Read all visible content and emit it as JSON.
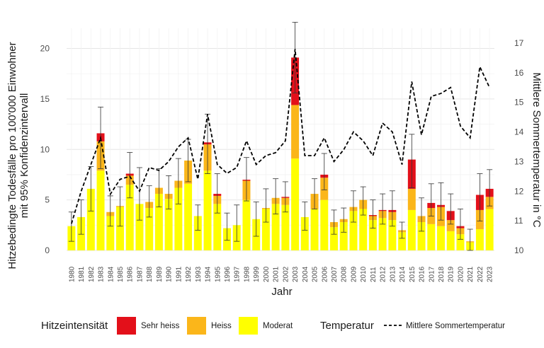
{
  "chart_data": {
    "type": "bar",
    "xlabel": "Jahr",
    "ylabel_lines": [
      "Hitzebedingte Todesfälle pro 100'000 Einwohner",
      "mit 95% Konfidenzintervall"
    ],
    "y2label": "Mittlere Sommertemperatur in °C",
    "ylim": [
      0,
      22
    ],
    "yticks": [
      0,
      5,
      10,
      15,
      20
    ],
    "y2lim": [
      10,
      17.5
    ],
    "y2ticks": [
      10,
      11,
      12,
      13,
      14,
      15,
      16,
      17
    ],
    "grid": true,
    "categories": [
      "1980",
      "1981",
      "1982",
      "1983",
      "1984",
      "1985",
      "1986",
      "1987",
      "1988",
      "1989",
      "1990",
      "1991",
      "1992",
      "1993",
      "1994",
      "1995",
      "1996",
      "1997",
      "1998",
      "1999",
      "2000",
      "2001",
      "2002",
      "2003",
      "2004",
      "2005",
      "2006",
      "2007",
      "2008",
      "2009",
      "2010",
      "2011",
      "2012",
      "2013",
      "2014",
      "2015",
      "2016",
      "2017",
      "2018",
      "2019",
      "2020",
      "2021",
      "2022",
      "2023"
    ],
    "series": [
      {
        "name": "Moderat",
        "color": "#ffff00",
        "values": [
          2.4,
          3.3,
          6.1,
          7.9,
          3.4,
          4.3,
          6.5,
          4.6,
          4.2,
          5.6,
          5.1,
          6.2,
          6.6,
          3.4,
          7.9,
          4.6,
          2.2,
          2.5,
          5.0,
          3.1,
          4.1,
          4.6,
          4.5,
          9.1,
          3.3,
          4.1,
          5.0,
          2.3,
          2.8,
          3.9,
          4.1,
          3.0,
          3.2,
          3.0,
          1.8,
          4.0,
          2.8,
          2.6,
          2.4,
          1.9,
          1.6,
          0.8,
          2.1,
          4.1
        ]
      },
      {
        "name": "Heiss",
        "color": "#fbb61a",
        "values": [
          0.0,
          0.0,
          0.0,
          2.9,
          0.4,
          0.1,
          0.9,
          0.0,
          0.6,
          0.6,
          0.5,
          0.7,
          2.3,
          0.0,
          2.6,
          0.8,
          0.0,
          0.0,
          1.9,
          0.0,
          0.1,
          0.6,
          0.7,
          5.3,
          0.0,
          1.5,
          2.2,
          0.5,
          0.3,
          0.4,
          0.9,
          0.4,
          0.7,
          0.8,
          0.2,
          2.1,
          0.6,
          1.6,
          1.9,
          1.1,
          0.6,
          0.1,
          1.9,
          1.2
        ]
      },
      {
        "name": "Sehr heiss",
        "color": "#e3101a",
        "values": [
          0.0,
          0.0,
          0.0,
          0.8,
          0.0,
          0.0,
          0.2,
          0.0,
          0.0,
          0.0,
          0.0,
          0.0,
          0.0,
          0.0,
          0.2,
          0.2,
          0.0,
          0.0,
          0.1,
          0.0,
          0.0,
          0.0,
          0.1,
          4.7,
          0.0,
          0.0,
          0.3,
          0.0,
          0.0,
          0.0,
          0.0,
          0.1,
          0.1,
          0.2,
          0.0,
          2.9,
          0.0,
          0.5,
          0.2,
          0.9,
          0.2,
          0.0,
          1.5,
          0.8
        ]
      }
    ],
    "ci_lower": [
      0.9,
      1.6,
      3.9,
      8.1,
      2.4,
      2.4,
      5.2,
      3.0,
      3.3,
      4.3,
      4.1,
      4.6,
      6.8,
      2.0,
      7.6,
      3.7,
      1.0,
      0.9,
      4.9,
      1.4,
      2.8,
      3.6,
      3.8,
      15.6,
      2.0,
      4.1,
      6.0,
      1.6,
      1.8,
      2.8,
      3.5,
      2.2,
      2.6,
      2.4,
      1.2,
      6.2,
      1.9,
      3.4,
      3.0,
      2.6,
      1.1,
      0.0,
      2.9,
      4.4
    ],
    "ci_upper": [
      3.8,
      5.0,
      8.3,
      14.2,
      5.4,
      6.3,
      9.7,
      8.2,
      6.4,
      8.1,
      7.4,
      9.1,
      11.0,
      4.5,
      13.5,
      7.6,
      3.7,
      4.5,
      9.2,
      4.8,
      6.1,
      7.1,
      6.8,
      22.6,
      4.8,
      7.1,
      9.6,
      4.0,
      4.2,
      5.9,
      6.3,
      5.0,
      5.6,
      5.9,
      2.8,
      11.5,
      5.2,
      6.6,
      6.7,
      5.6,
      4.1,
      2.1,
      7.6,
      8.0
    ],
    "temperature": {
      "name": "Mittlere Sommertemperatur",
      "values": [
        10.9,
        12.0,
        12.9,
        13.8,
        11.9,
        12.4,
        12.5,
        12.0,
        12.8,
        12.7,
        13.0,
        13.5,
        13.8,
        12.4,
        14.6,
        12.9,
        12.6,
        12.8,
        13.7,
        12.9,
        13.2,
        13.3,
        13.7,
        16.8,
        13.2,
        13.2,
        13.8,
        13.0,
        13.4,
        14.0,
        13.7,
        13.2,
        14.3,
        14.0,
        12.9,
        15.7,
        13.9,
        15.2,
        15.3,
        15.5,
        14.2,
        13.8,
        16.2,
        15.5
      ]
    }
  },
  "legend": {
    "intensity_title": "Hitzeintensität",
    "items": [
      {
        "label": "Sehr heiss",
        "color": "#e3101a"
      },
      {
        "label": "Heiss",
        "color": "#fbb61a"
      },
      {
        "label": "Moderat",
        "color": "#ffff00"
      }
    ],
    "temperature_title": "Temperatur",
    "temperature_label": "Mittlere Sommertemperatur"
  }
}
